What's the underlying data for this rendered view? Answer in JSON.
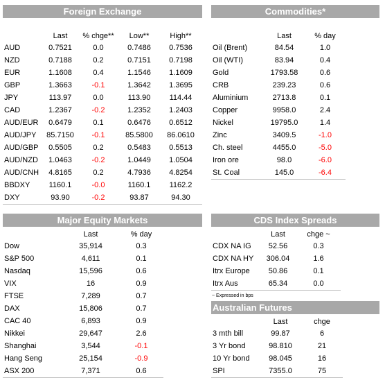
{
  "fx": {
    "title": "Foreign Exchange",
    "headers": [
      "",
      "Last",
      "% chge**",
      "Low**",
      "High**"
    ],
    "rows": [
      [
        "AUD",
        "0.7521",
        "0.0",
        "0.7486",
        "0.7536"
      ],
      [
        "NZD",
        "0.7188",
        "0.2",
        "0.7151",
        "0.7198"
      ],
      [
        "EUR",
        "1.1608",
        "0.4",
        "1.1546",
        "1.1609"
      ],
      [
        "GBP",
        "1.3663",
        "-0.1",
        "1.3642",
        "1.3695"
      ],
      [
        "JPY",
        "113.97",
        "0.0",
        "113.90",
        "114.44"
      ],
      [
        "CAD",
        "1.2367",
        "-0.2",
        "1.2352",
        "1.2403"
      ],
      [
        "AUD/EUR",
        "0.6479",
        "0.1",
        "0.6476",
        "0.6512"
      ],
      [
        "AUD/JPY",
        "85.7150",
        "-0.1",
        "85.5800",
        "86.0610"
      ],
      [
        "AUD/GBP",
        "0.5505",
        "0.2",
        "0.5483",
        "0.5513"
      ],
      [
        "AUD/NZD",
        "1.0463",
        "-0.2",
        "1.0449",
        "1.0504"
      ],
      [
        "AUD/CNH",
        "4.8165",
        "0.2",
        "4.7936",
        "4.8254"
      ],
      [
        "BBDXY",
        "1160.1",
        "-0.0",
        "1160.1",
        "1162.2"
      ],
      [
        "DXY",
        "93.90",
        "-0.2",
        "93.87",
        "94.30"
      ]
    ]
  },
  "commodities": {
    "title": "Commodities*",
    "headers": [
      "",
      "Last",
      "% day"
    ],
    "rows": [
      [
        "Oil (Brent)",
        "84.54",
        "1.0"
      ],
      [
        "Oil (WTI)",
        "83.94",
        "0.4"
      ],
      [
        "Gold",
        "1793.58",
        "0.6"
      ],
      [
        "CRB",
        "239.23",
        "0.6"
      ],
      [
        "Aluminium",
        "2713.8",
        "0.1"
      ],
      [
        "Copper",
        "9958.0",
        "2.4"
      ],
      [
        "Nickel",
        "19795.0",
        "1.4"
      ],
      [
        "Zinc",
        "3409.5",
        "-1.0"
      ],
      [
        "Ch. steel",
        "4455.0",
        "-5.0"
      ],
      [
        "Iron ore",
        "98.0",
        "-6.0"
      ],
      [
        "St. Coal",
        "145.0",
        "-6.4"
      ]
    ]
  },
  "equity": {
    "title": "Major Equity Markets",
    "headers": [
      "",
      "Last",
      "% day"
    ],
    "rows": [
      [
        "Dow",
        "35,914",
        "0.3"
      ],
      [
        "S&P 500",
        "4,611",
        "0.1"
      ],
      [
        "Nasdaq",
        "15,596",
        "0.6"
      ],
      [
        "VIX",
        "16",
        "0.9"
      ],
      [
        "FTSE",
        "7,289",
        "0.7"
      ],
      [
        "DAX",
        "15,806",
        "0.7"
      ],
      [
        "CAC 40",
        "6,893",
        "0.9"
      ],
      [
        "Nikkei",
        "29,647",
        "2.6"
      ],
      [
        "Shanghai",
        "3,544",
        "-0.1"
      ],
      [
        "Hang Seng",
        "25,154",
        "-0.9"
      ],
      [
        "ASX 200",
        "7,371",
        "0.6"
      ]
    ]
  },
  "cds": {
    "title": "CDS Index Spreads",
    "headers": [
      "",
      "Last",
      "chge ~"
    ],
    "rows": [
      [
        "CDX NA IG",
        "52.56",
        "0.3"
      ],
      [
        "CDX NA HY",
        "306.04",
        "1.6"
      ],
      [
        "Itrx Europe",
        "50.86",
        "0.1"
      ],
      [
        "Itrx Aus",
        "65.34",
        "0.0"
      ]
    ],
    "note": "~ Expressed in bps"
  },
  "futures": {
    "title": "Australian Futures",
    "headers": [
      "",
      "Last",
      "chge"
    ],
    "rows": [
      [
        "3 mth bill",
        "99.87",
        "6"
      ],
      [
        "3 Yr bond",
        "98.810",
        "21"
      ],
      [
        "10 Yr bond",
        "98.045",
        "16"
      ],
      [
        "SPI",
        "7355.0",
        "75"
      ]
    ]
  },
  "colors": {
    "header_bg": "#a8a8a8",
    "negative": "#ff0000"
  }
}
